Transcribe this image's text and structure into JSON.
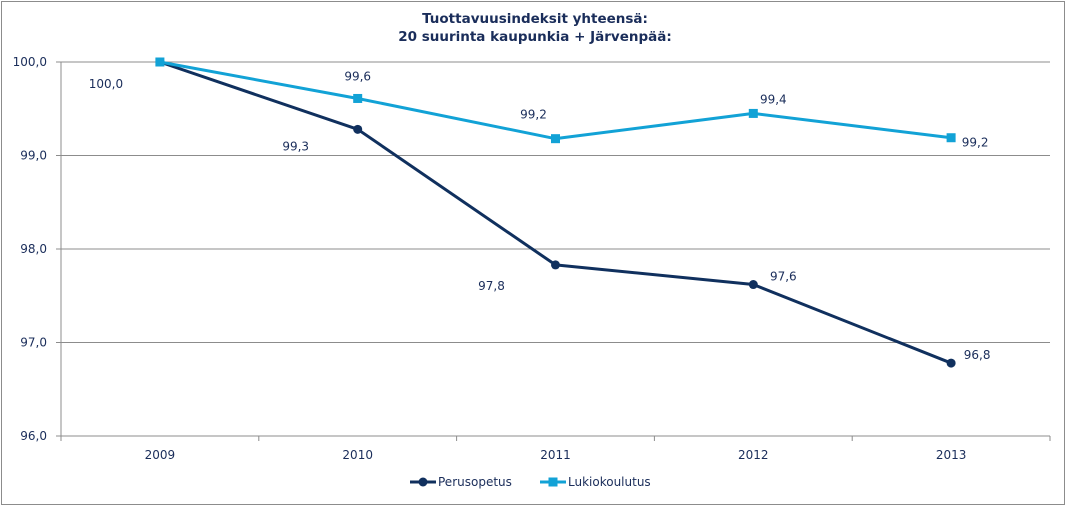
{
  "chart_data": {
    "type": "line",
    "title": [
      "Tuottavuusindeksit yhteensä:",
      "20 suurinta kaupunkia + Järvenpää:"
    ],
    "xlabel": "",
    "ylabel": "",
    "categories": [
      "2009",
      "2010",
      "2011",
      "2012",
      "2013"
    ],
    "ylim": [
      96.0,
      100.0
    ],
    "yticks": [
      96.0,
      97.0,
      98.0,
      99.0,
      100.0
    ],
    "ytick_labels": [
      "96,0",
      "97,0",
      "98,0",
      "99,0",
      "100,0"
    ],
    "grid": true,
    "legend": "bottom",
    "series": [
      {
        "name": "Perusopetus",
        "color": "#10305e",
        "marker": "circle",
        "values": [
          100.0,
          99.28,
          97.83,
          97.62,
          96.78
        ],
        "labels": [
          "100,0",
          "99,3",
          "97,8",
          "97,6",
          "96,8"
        ]
      },
      {
        "name": "Lukiokoulutus",
        "color": "#12a2d6",
        "marker": "square",
        "values": [
          100.0,
          99.61,
          99.18,
          99.45,
          99.19
        ],
        "labels": [
          "",
          "99,6",
          "99,2",
          "99,4",
          "99,2"
        ]
      }
    ]
  }
}
